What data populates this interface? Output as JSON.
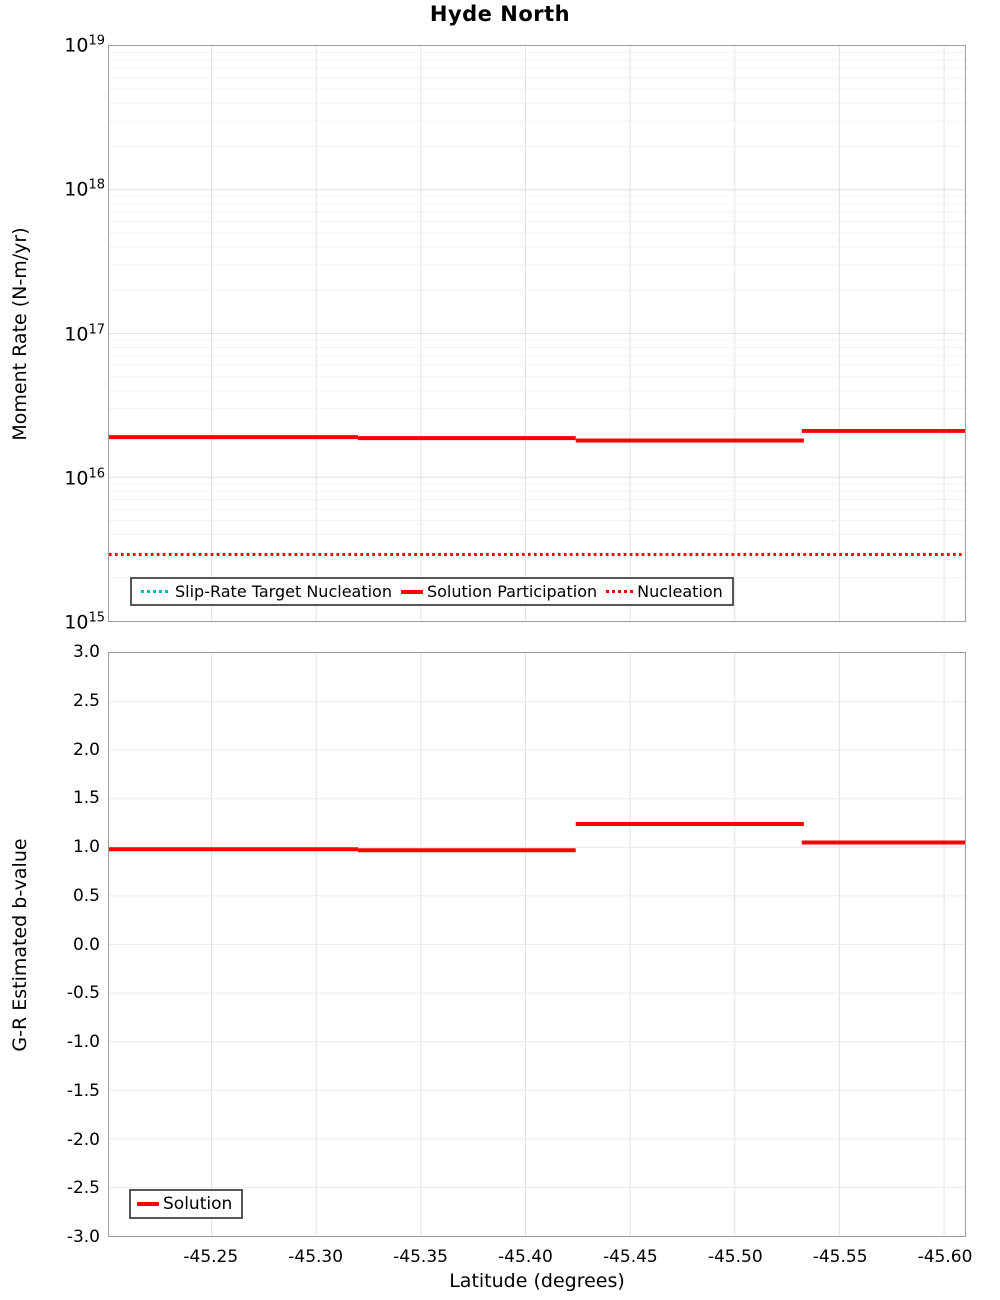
{
  "title": "Hyde North",
  "colors": {
    "solution_red": "#ff0000",
    "target_cyan": "#00b8bc",
    "frame_gray": "#9e9e9e",
    "grid_major": "#e2e2e2",
    "grid_minor": "#f2f2f2",
    "grid_soft": "#ececec",
    "legend_border": "#565656"
  },
  "chart_data": [
    {
      "type": "line",
      "title": "Hyde North",
      "ylabel": "Moment Rate (N-m/yr)",
      "yscale": "log",
      "ylim": [
        1000000000000000.0,
        1e+19
      ],
      "ytick_exponents": [
        19,
        18,
        17,
        16,
        15
      ],
      "xlim": [
        -45.201,
        -45.61
      ],
      "x_axis_reversed": true,
      "grid": "on",
      "legend_position": "inside-bottom-left",
      "series": [
        {
          "name": "Slip-Rate Target Nucleation",
          "style": "dotted",
          "color": "#00b8bc",
          "segments": [
            {
              "x_start": -45.201,
              "x_end": -45.61,
              "value": 2900000000000000.0
            }
          ]
        },
        {
          "name": "Solution Participation",
          "style": "solid",
          "color": "#ff0000",
          "segments": [
            {
              "x_start": -45.201,
              "x_end": -45.32,
              "value": 1.9e+16
            },
            {
              "x_start": -45.32,
              "x_end": -45.424,
              "value": 1.87e+16
            },
            {
              "x_start": -45.424,
              "x_end": -45.533,
              "value": 1.8e+16
            },
            {
              "x_start": -45.532,
              "x_end": -45.61,
              "value": 2.1e+16
            }
          ]
        },
        {
          "name": "Nucleation",
          "style": "dotted",
          "color": "#ff0000",
          "segments": [
            {
              "x_start": -45.201,
              "x_end": -45.61,
              "value": 2900000000000000.0
            }
          ]
        }
      ]
    },
    {
      "type": "line",
      "ylabel": "G-R Estimated b-value",
      "xlabel": "Latitude (degrees)",
      "ylim": [
        -3,
        3
      ],
      "ytick_step": 0.5,
      "ytick_labels": [
        "3.0",
        "2.5",
        "2.0",
        "1.5",
        "1.0",
        "0.5",
        "0.0",
        "-0.5",
        "-1.0",
        "-1.5",
        "-2.0",
        "-2.5",
        "-3.0"
      ],
      "xlim": [
        -45.201,
        -45.61
      ],
      "x_axis_reversed": true,
      "xticks": {
        "values": [
          -45.25,
          -45.3,
          -45.35,
          -45.4,
          -45.45,
          -45.5,
          -45.55,
          -45.6
        ],
        "labels": [
          "-45.25",
          "-45.30",
          "-45.35",
          "-45.40",
          "-45.45",
          "-45.50",
          "-45.55",
          "-45.60"
        ]
      },
      "grid": "on",
      "legend_position": "inside-bottom-left",
      "series": [
        {
          "name": "Solution",
          "style": "solid",
          "color": "#ff0000",
          "segments": [
            {
              "x_start": -45.201,
              "x_end": -45.32,
              "value": 0.98
            },
            {
              "x_start": -45.32,
              "x_end": -45.424,
              "value": 0.97
            },
            {
              "x_start": -45.424,
              "x_end": -45.533,
              "value": 1.24
            },
            {
              "x_start": -45.532,
              "x_end": -45.61,
              "value": 1.05
            }
          ]
        }
      ]
    }
  ]
}
